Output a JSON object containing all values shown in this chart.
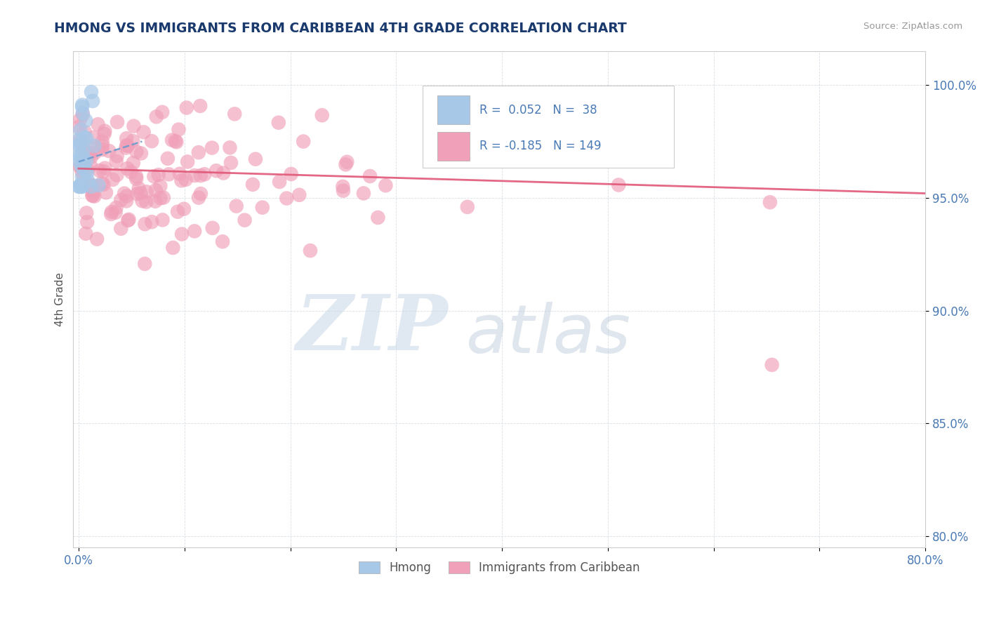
{
  "title": "HMONG VS IMMIGRANTS FROM CARIBBEAN 4TH GRADE CORRELATION CHART",
  "source": "Source: ZipAtlas.com",
  "ylabel": "4th Grade",
  "xlim": [
    -0.005,
    0.8
  ],
  "ylim": [
    0.795,
    1.015
  ],
  "ytick_labels": [
    "80.0%",
    "85.0%",
    "90.0%",
    "95.0%",
    "100.0%"
  ],
  "ytick_values": [
    0.8,
    0.85,
    0.9,
    0.95,
    1.0
  ],
  "xtick_labels": [
    "0.0%",
    "",
    "",
    "",
    "",
    "",
    "",
    "",
    "80.0%"
  ],
  "xtick_values": [
    0.0,
    0.1,
    0.2,
    0.3,
    0.4,
    0.5,
    0.6,
    0.7,
    0.8
  ],
  "legend_r1_val": "0.052",
  "legend_n1_val": "38",
  "legend_r2_val": "-0.185",
  "legend_n2_val": "149",
  "blue_color": "#a8c8e8",
  "pink_color": "#f0a0b8",
  "blue_line_color": "#6699cc",
  "pink_line_color": "#e05878",
  "title_color": "#1a3a6e",
  "axis_label_color": "#4a7ab5",
  "ylabel_color": "#555555",
  "watermark_zip": "ZIP",
  "watermark_atlas": "atlas",
  "watermark_color_zip": "#c8d8e8",
  "watermark_color_atlas": "#b8c8d8",
  "R1": 0.052,
  "N1": 38,
  "R2": -0.185,
  "N2": 149,
  "blue_regression_x0": 0.0,
  "blue_regression_x1": 0.06,
  "blue_regression_y0": 0.966,
  "blue_regression_y1": 0.975,
  "pink_regression_x0": 0.0,
  "pink_regression_x1": 0.8,
  "pink_regression_y0": 0.963,
  "pink_regression_y1": 0.952
}
